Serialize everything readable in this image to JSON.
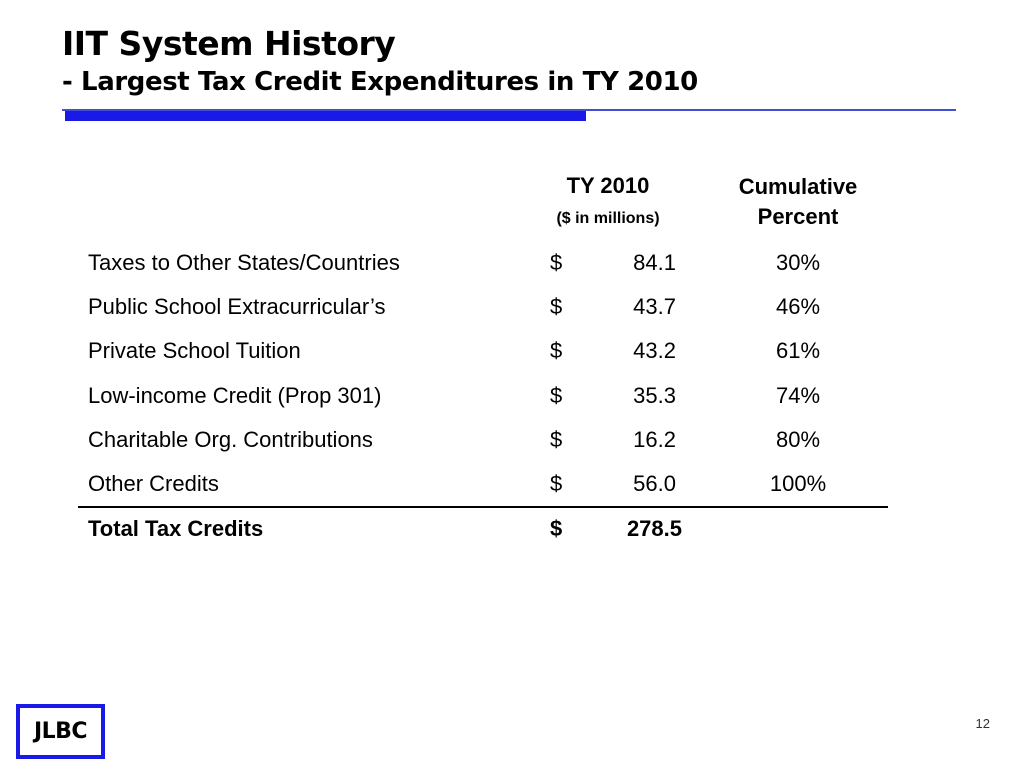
{
  "slide": {
    "title": "IIT System History",
    "subtitle": "- Largest Tax Credit Expenditures in TY 2010",
    "page_number": "12",
    "logo_text": "JLBC",
    "accent_color": "#1a1ae6"
  },
  "table": {
    "columns": {
      "amount_header": "TY 2010",
      "amount_subheader": "($ in millions)",
      "percent_header_line1": "Cumulative",
      "percent_header_line2": "Percent"
    },
    "rows": [
      {
        "label": "Taxes to Other States/Countries",
        "currency": "$",
        "amount": "84.1",
        "percent": "30%"
      },
      {
        "label": "Public School Extracurricular’s",
        "currency": "$",
        "amount": "43.7",
        "percent": "46%"
      },
      {
        "label": "Private School Tuition",
        "currency": "$",
        "amount": "43.2",
        "percent": "61%"
      },
      {
        "label": "Low-income Credit (Prop 301)",
        "currency": "$",
        "amount": "35.3",
        "percent": "74%"
      },
      {
        "label": "Charitable Org. Contributions",
        "currency": "$",
        "amount": "16.2",
        "percent": "80%"
      },
      {
        "label": "Other Credits",
        "currency": "$",
        "amount": "56.0",
        "percent": "100%"
      }
    ],
    "total": {
      "label": "Total Tax Credits",
      "currency": "$",
      "amount": "278.5"
    }
  }
}
